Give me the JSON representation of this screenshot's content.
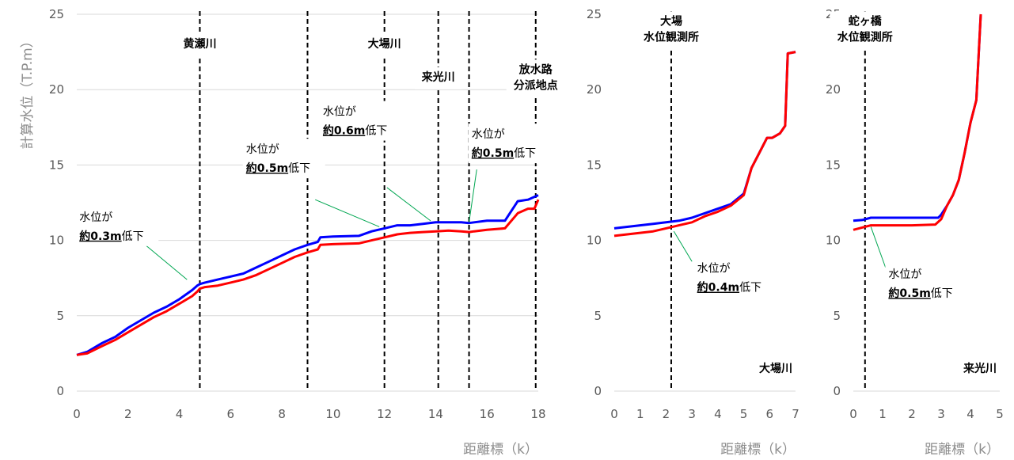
{
  "colors": {
    "before": "#0000ff",
    "after": "#ff0000",
    "leader": "#00a651"
  },
  "chart_data": [
    {
      "id": "main",
      "type": "line",
      "ylabel": "計算水位（T.P.m）",
      "xlabel": "距離標（k）",
      "xlim": [
        0,
        18
      ],
      "ylim": [
        0,
        25
      ],
      "xticks": [
        0,
        2,
        4,
        6,
        8,
        10,
        12,
        14,
        16,
        18
      ],
      "yticks": [
        0,
        5,
        10,
        15,
        20,
        25
      ],
      "grid": "horizontal",
      "series": [
        {
          "name": "",
          "color": "#0000ff",
          "x": [
            0,
            0.4,
            1,
            1.5,
            2,
            2.5,
            3,
            3.5,
            4,
            4.5,
            4.7,
            4.8,
            5,
            5.5,
            6,
            6.5,
            7,
            7.5,
            8,
            8.5,
            9,
            9.4,
            9.5,
            10,
            11,
            11.5,
            12,
            12.5,
            13,
            13.5,
            14,
            14.5,
            15,
            15.3,
            15.5,
            16,
            16.7,
            17.2,
            17.6,
            18
          ],
          "y": [
            2.4,
            2.6,
            3.2,
            3.6,
            4.2,
            4.7,
            5.2,
            5.6,
            6.1,
            6.7,
            7.0,
            7.1,
            7.2,
            7.4,
            7.6,
            7.8,
            8.2,
            8.6,
            9.0,
            9.4,
            9.7,
            9.9,
            10.2,
            10.25,
            10.3,
            10.6,
            10.8,
            11.0,
            11.0,
            11.1,
            11.2,
            11.2,
            11.2,
            11.15,
            11.2,
            11.3,
            11.3,
            12.6,
            12.7,
            13.0
          ]
        },
        {
          "name": "",
          "color": "#ff0000",
          "x": [
            0,
            0.4,
            1,
            1.5,
            2,
            2.5,
            3,
            3.5,
            4,
            4.5,
            4.7,
            4.8,
            5,
            5.5,
            6,
            6.5,
            7,
            7.5,
            8,
            8.5,
            9,
            9.4,
            9.5,
            10,
            11,
            11.5,
            12,
            12.5,
            13,
            13.5,
            14,
            14.5,
            15,
            15.3,
            15.5,
            16,
            16.7,
            17.2,
            17.6,
            17.85,
            18
          ],
          "y": [
            2.4,
            2.5,
            3.0,
            3.4,
            3.9,
            4.4,
            4.9,
            5.3,
            5.8,
            6.3,
            6.6,
            6.8,
            6.9,
            7.0,
            7.2,
            7.4,
            7.7,
            8.1,
            8.5,
            8.9,
            9.2,
            9.4,
            9.7,
            9.75,
            9.8,
            10.0,
            10.2,
            10.4,
            10.5,
            10.55,
            10.6,
            10.65,
            10.6,
            10.55,
            10.6,
            10.7,
            10.8,
            11.8,
            12.1,
            12.1,
            12.7
          ]
        }
      ],
      "vlines": [
        {
          "x": 4.8,
          "label": [
            "黄瀬川"
          ],
          "ly": 22.8
        },
        {
          "x": 9.0,
          "label": [],
          "ly": 0
        },
        {
          "x": 12.0,
          "label": [
            "大場川"
          ],
          "ly": 22.8
        },
        {
          "x": 14.1,
          "label": [
            "来光川"
          ],
          "ly": 20.6
        },
        {
          "x": 15.3,
          "label": [],
          "ly": 0
        },
        {
          "x": 17.9,
          "label": [
            "放水路",
            "分派地点"
          ],
          "ly": 21.1
        }
      ],
      "annotations": [
        {
          "line1": "水位が",
          "bold": "約0.3m",
          "rest": "低下",
          "tx": 0.1,
          "ty": 11.3,
          "lx1": 2.6,
          "ly1": 9.8,
          "lx2": 4.3,
          "ly2": 7.4
        },
        {
          "line1": "水位が",
          "bold": "約0.5m",
          "rest": "低下",
          "tx": 6.6,
          "ty": 15.8,
          "lx1": 9.3,
          "ly1": 12.7,
          "lx2": 11.8,
          "ly2": 10.9
        },
        {
          "line1": "水位が",
          "bold": "約0.6m",
          "rest": "低下",
          "tx": 9.6,
          "ty": 18.3,
          "lx1": 12.1,
          "ly1": 13.5,
          "lx2": 13.8,
          "ly2": 11.3
        },
        {
          "line1": "水位が",
          "bold": "約0.5m",
          "rest": "低下",
          "tx": 15.4,
          "ty": 16.8,
          "lx1": 15.6,
          "ly1": 14.7,
          "lx2": 15.3,
          "ly2": 11.2
        }
      ],
      "box": {
        "l": 97,
        "r": 680,
        "t": 18,
        "b": 494
      }
    },
    {
      "id": "oba",
      "type": "line",
      "xlabel": "距離標（k）",
      "xlim": [
        0,
        7
      ],
      "ylim": [
        0,
        25
      ],
      "xticks": [
        0,
        1,
        2,
        3,
        4,
        5,
        6,
        7
      ],
      "yticks": [
        0,
        5,
        10,
        15,
        20,
        25
      ],
      "grid": "none",
      "series": [
        {
          "name": "",
          "color": "#0000ff",
          "x": [
            0,
            0.5,
            1,
            1.5,
            2,
            2.5,
            3,
            3.5,
            4,
            4.5,
            5,
            5.3,
            5.6,
            5.9,
            6.1,
            6.4,
            6.6,
            6.7,
            7
          ],
          "y": [
            10.8,
            10.9,
            11.0,
            11.1,
            11.2,
            11.3,
            11.5,
            11.8,
            12.1,
            12.4,
            13.1,
            14.8,
            15.8,
            16.8,
            16.8,
            17.1,
            17.6,
            22.4,
            22.5
          ]
        },
        {
          "name": "",
          "color": "#ff0000",
          "x": [
            0,
            0.5,
            1,
            1.5,
            2,
            2.5,
            3,
            3.5,
            4,
            4.5,
            5,
            5.3,
            5.6,
            5.9,
            6.1,
            6.4,
            6.6,
            6.7,
            7
          ],
          "y": [
            10.3,
            10.4,
            10.5,
            10.6,
            10.8,
            11.0,
            11.2,
            11.6,
            11.9,
            12.3,
            13.0,
            14.8,
            15.8,
            16.8,
            16.8,
            17.1,
            17.6,
            22.4,
            22.5
          ]
        }
      ],
      "vlines": [
        {
          "x": 2.2,
          "label": [
            "大場",
            "水位観測所"
          ],
          "ly": 24.3
        }
      ],
      "annotations": [
        {
          "line1": "水位が",
          "bold": "約0.4m",
          "rest": "低下",
          "tx": 3.2,
          "ty": 7.9,
          "lx1": 3.0,
          "ly1": 8.6,
          "lx2": 2.3,
          "ly2": 10.6
        }
      ],
      "corner_label": "大場川",
      "box": {
        "l": 776,
        "r": 1005,
        "t": 18,
        "b": 494
      }
    },
    {
      "id": "raiko",
      "type": "line",
      "xlabel": "距離標（k）",
      "xlim": [
        0,
        5
      ],
      "ylim": [
        0,
        25
      ],
      "xticks": [
        0,
        1,
        2,
        3,
        4,
        5
      ],
      "yticks": [
        0,
        5,
        10,
        15,
        20,
        25
      ],
      "grid": "none",
      "series": [
        {
          "name": "",
          "color": "#0000ff",
          "x": [
            0,
            0.3,
            0.6,
            1,
            2,
            2.9,
            3.0,
            3.2,
            3.4,
            3.6,
            3.8,
            4.0,
            4.2,
            4.35
          ],
          "y": [
            11.3,
            11.35,
            11.5,
            11.5,
            11.5,
            11.5,
            11.7,
            12.3,
            13.0,
            14.0,
            15.8,
            17.8,
            19.3,
            25.0
          ]
        },
        {
          "name": "",
          "color": "#ff0000",
          "x": [
            0,
            0.3,
            0.6,
            1,
            2,
            2.8,
            3.0,
            3.2,
            3.4,
            3.6,
            3.8,
            4.0,
            4.2,
            4.35
          ],
          "y": [
            10.7,
            10.85,
            11.0,
            11.0,
            11.0,
            11.05,
            11.4,
            12.3,
            13.0,
            14.0,
            15.8,
            17.8,
            19.3,
            25.0
          ]
        }
      ],
      "vlines": [
        {
          "x": 0.4,
          "label": [
            "蛇ヶ橋",
            "水位観測所"
          ],
          "ly": 24.3
        }
      ],
      "annotations": [
        {
          "line1": "水位が",
          "bold": "約0.5m",
          "rest": "低下",
          "tx": 1.2,
          "ty": 7.5,
          "lx1": 1.1,
          "ly1": 8.2,
          "lx2": 0.6,
          "ly2": 10.9
        }
      ],
      "corner_label": "来光川",
      "box": {
        "l": 1078,
        "r": 1263,
        "t": 18,
        "b": 494
      }
    }
  ]
}
